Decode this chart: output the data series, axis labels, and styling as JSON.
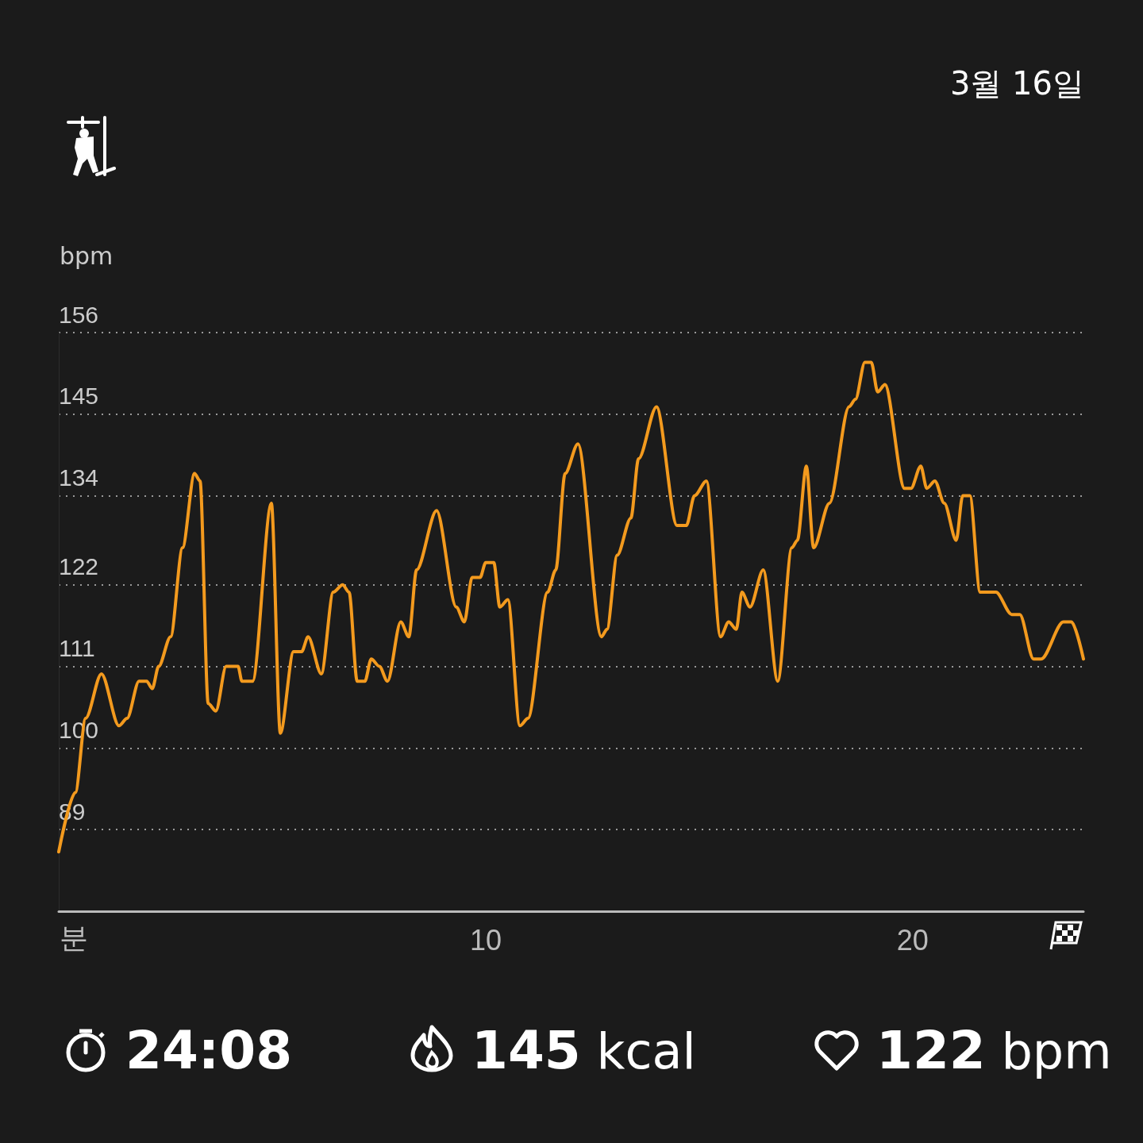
{
  "chart_data": {
    "type": "line",
    "ylabel": "bpm",
    "xlabel": "분",
    "annotations": [
      "3월 16일",
      "24:08",
      "145 kcal",
      "122 bpm"
    ],
    "x": [
      0,
      0.39,
      0.63,
      1.0,
      1.41,
      1.6,
      1.88,
      2.06,
      2.19,
      2.34,
      2.62,
      2.9,
      3.18,
      3.31,
      3.5,
      3.68,
      3.92,
      4.2,
      4.29,
      4.54,
      4.98,
      5.19,
      5.5,
      5.69,
      5.84,
      6.15,
      6.43,
      6.65,
      6.8,
      6.99,
      7.17,
      7.32,
      7.51,
      7.7,
      8.01,
      8.2,
      8.38,
      8.85,
      9.31,
      9.5,
      9.68,
      9.87,
      10.0,
      10.19,
      10.33,
      10.52,
      10.8,
      10.99,
      11.45,
      11.64,
      11.86,
      12.16,
      12.71,
      12.84,
      13.08,
      13.4,
      13.58,
      14.0,
      14.48,
      14.7,
      14.89,
      15.17,
      15.5,
      15.69,
      15.87,
      16.0,
      16.19,
      16.5,
      16.84,
      17.17,
      17.3,
      17.51,
      17.68,
      18.05,
      18.51,
      18.66,
      18.88,
      19.03,
      19.18,
      19.35,
      19.81,
      19.96,
      20.19,
      20.33,
      20.52,
      20.74,
      21.02,
      21.17,
      21.34,
      21.58,
      21.95,
      22.32,
      22.51,
      22.83,
      23.01,
      23.53,
      23.72,
      24.0
    ],
    "series": [
      {
        "color": "#f39a1e",
        "values": [
          86,
          94,
          104,
          110,
          103,
          104,
          109,
          109,
          108,
          111,
          115,
          127,
          137,
          136,
          106,
          105,
          111,
          111,
          109,
          109,
          133,
          102,
          113,
          113,
          115,
          110,
          121,
          122,
          121,
          109,
          109,
          112,
          111,
          109,
          117,
          115,
          124,
          132,
          119,
          117,
          123,
          123,
          125,
          125,
          119,
          120,
          103,
          104,
          121,
          124,
          137,
          141,
          115,
          116,
          126,
          131,
          139,
          146,
          130,
          130,
          134,
          136,
          115,
          117,
          116,
          121,
          119,
          124,
          109,
          127,
          128,
          138,
          127,
          133,
          146,
          147,
          152,
          152,
          148,
          149,
          135,
          135,
          138,
          135,
          136,
          133,
          128,
          134,
          134,
          121,
          121,
          118,
          118,
          112,
          112,
          117,
          117,
          112
        ]
      }
    ],
    "xlim": [
      0,
      24
    ],
    "xticks": [
      10,
      20
    ],
    "ylim": [
      78,
      156
    ],
    "yticks": [
      89,
      100,
      111,
      122,
      134,
      145,
      156
    ],
    "grid": "y",
    "marker": "none",
    "line_style": "solid"
  }
}
